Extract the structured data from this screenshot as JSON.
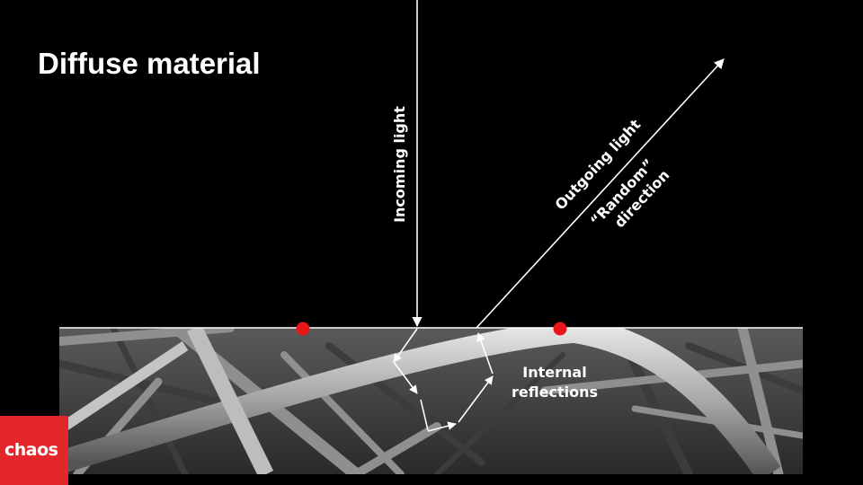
{
  "slide": {
    "title": "Diffuse material"
  },
  "labels": {
    "incoming": "Incoming light",
    "outgoing": "Outgoing light",
    "random_line1": "“Random”",
    "random_line2": "direction",
    "internal_line1": "Internal",
    "internal_line2": "reflections"
  },
  "logo": {
    "text": "chaos"
  },
  "colors": {
    "background": "#000000",
    "arrows": "#ffffff",
    "markers": "#e8161b",
    "logo_bg": "#e3262b"
  },
  "image": {
    "description_icon": "fiber-micrograph"
  }
}
